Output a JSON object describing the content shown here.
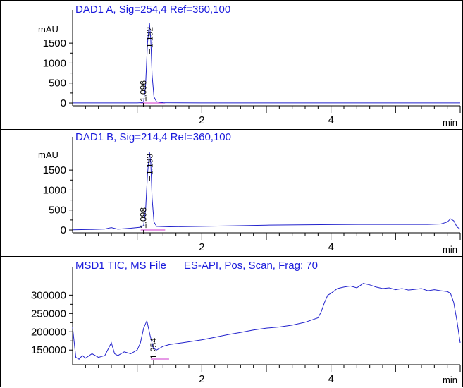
{
  "chart_data": [
    {
      "type": "line",
      "title": "DAD1 A, Sig=254,4 Ref=360,100",
      "ylabel": "mAU",
      "xlabel": "min",
      "xlim": [
        0,
        6.0
      ],
      "ylim": [
        -70,
        2050
      ],
      "xticks": [
        2,
        4
      ],
      "yticks": [
        0,
        500,
        1000,
        1500
      ],
      "grid": false,
      "peaks": [
        {
          "label": "1.096",
          "x": 1.096
        },
        {
          "label": "1.192",
          "x": 1.192
        }
      ],
      "series": [
        {
          "x": [
            0.0,
            0.5,
            1.0,
            1.08,
            1.1,
            1.13,
            1.16,
            1.19,
            1.21,
            1.23,
            1.26,
            1.3,
            1.4,
            2.0,
            3.0,
            4.0,
            5.0,
            6.0
          ],
          "y": [
            2,
            2,
            3,
            10,
            30,
            450,
            1500,
            2000,
            1600,
            700,
            150,
            30,
            8,
            3,
            3,
            3,
            3,
            3
          ]
        }
      ]
    },
    {
      "type": "line",
      "title": "DAD1 B, Sig=214,4 Ref=360,100",
      "ylabel": "mAU",
      "xlabel": "min",
      "xlim": [
        0,
        6.0
      ],
      "ylim": [
        -70,
        2050
      ],
      "xticks": [
        2,
        4
      ],
      "yticks": [
        0,
        500,
        1000,
        1500
      ],
      "grid": false,
      "peaks": [
        {
          "label": "1.098",
          "x": 1.098
        },
        {
          "label": "1.193",
          "x": 1.193
        }
      ],
      "series": [
        {
          "x": [
            0.0,
            0.3,
            0.5,
            0.6,
            0.7,
            0.9,
            1.05,
            1.1,
            1.13,
            1.16,
            1.19,
            1.21,
            1.23,
            1.26,
            1.3,
            1.5,
            2.0,
            2.5,
            3.0,
            3.5,
            4.0,
            4.5,
            5.0,
            5.5,
            5.7,
            5.8,
            5.85,
            5.9,
            5.95,
            6.0
          ],
          "y": [
            5,
            15,
            25,
            60,
            20,
            45,
            70,
            110,
            500,
            1400,
            1950,
            1700,
            800,
            200,
            90,
            80,
            90,
            105,
            120,
            130,
            135,
            140,
            140,
            140,
            150,
            200,
            280,
            230,
            80,
            20
          ]
        }
      ]
    },
    {
      "type": "line",
      "title": "MSD1 TIC, MS File      ES-API, Pos, Scan, Frag: 70",
      "ylabel": "",
      "xlabel": "min",
      "xlim": [
        0,
        6.0
      ],
      "ylim": [
        110000,
        345000
      ],
      "xticks": [
        2,
        4
      ],
      "yticks": [
        150000,
        200000,
        250000,
        300000
      ],
      "grid": false,
      "peaks": [
        {
          "label": "1.254",
          "x": 1.254
        }
      ],
      "series": [
        {
          "x": [
            0.0,
            0.05,
            0.1,
            0.15,
            0.2,
            0.3,
            0.4,
            0.5,
            0.6,
            0.65,
            0.7,
            0.8,
            0.9,
            1.0,
            1.05,
            1.1,
            1.15,
            1.2,
            1.25,
            1.3,
            1.35,
            1.4,
            1.5,
            1.7,
            2.0,
            2.2,
            2.4,
            2.6,
            2.8,
            3.0,
            3.2,
            3.4,
            3.6,
            3.8,
            3.85,
            3.9,
            3.95,
            4.0,
            4.1,
            4.2,
            4.3,
            4.4,
            4.5,
            4.6,
            4.7,
            4.8,
            4.9,
            5.0,
            5.1,
            5.2,
            5.3,
            5.4,
            5.5,
            5.6,
            5.7,
            5.8,
            5.85,
            5.9,
            5.95,
            6.0
          ],
          "y": [
            212000,
            130000,
            125000,
            135000,
            128000,
            140000,
            130000,
            135000,
            170000,
            140000,
            135000,
            145000,
            140000,
            150000,
            170000,
            210000,
            230000,
            190000,
            155000,
            150000,
            155000,
            160000,
            165000,
            170000,
            178000,
            185000,
            192000,
            198000,
            205000,
            210000,
            213000,
            218000,
            226000,
            238000,
            255000,
            280000,
            300000,
            305000,
            318000,
            322000,
            325000,
            320000,
            332000,
            328000,
            322000,
            318000,
            320000,
            315000,
            318000,
            314000,
            316000,
            318000,
            312000,
            315000,
            312000,
            310000,
            305000,
            280000,
            230000,
            170000
          ]
        }
      ]
    }
  ]
}
